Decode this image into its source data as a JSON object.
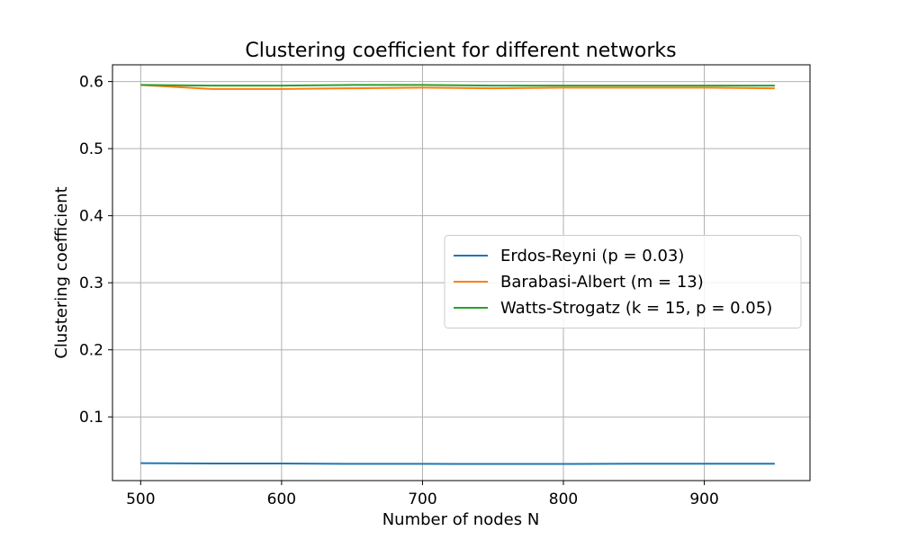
{
  "chart_data": {
    "type": "line",
    "title": "Clustering coefficient for different networks",
    "xlabel": "Number of nodes N",
    "ylabel": "Clustering coefficient",
    "xlim": [
      480,
      975
    ],
    "ylim": [
      0.005,
      0.625
    ],
    "xticks": [
      500,
      600,
      700,
      800,
      900
    ],
    "yticks": [
      0.1,
      0.2,
      0.3,
      0.4,
      0.5,
      0.6
    ],
    "grid": true,
    "legend_position": "center-right",
    "x": [
      500,
      550,
      600,
      650,
      700,
      750,
      800,
      850,
      900,
      950
    ],
    "series": [
      {
        "name": "Erdos-Reyni (p = 0.03)",
        "color": "#1f77b4",
        "values": [
          0.031,
          0.0305,
          0.0305,
          0.03,
          0.03,
          0.0298,
          0.0298,
          0.0302,
          0.0302,
          0.0302
        ]
      },
      {
        "name": "Barabasi-Albert (m = 13)",
        "color": "#ff7f0e",
        "values": [
          0.595,
          0.589,
          0.589,
          0.59,
          0.591,
          0.59,
          0.591,
          0.591,
          0.591,
          0.59
        ]
      },
      {
        "name": "Watts-Strogatz (k = 15, p = 0.05)",
        "color": "#2ca02c",
        "values": [
          0.595,
          0.594,
          0.594,
          0.595,
          0.595,
          0.594,
          0.594,
          0.594,
          0.594,
          0.594
        ]
      }
    ]
  }
}
